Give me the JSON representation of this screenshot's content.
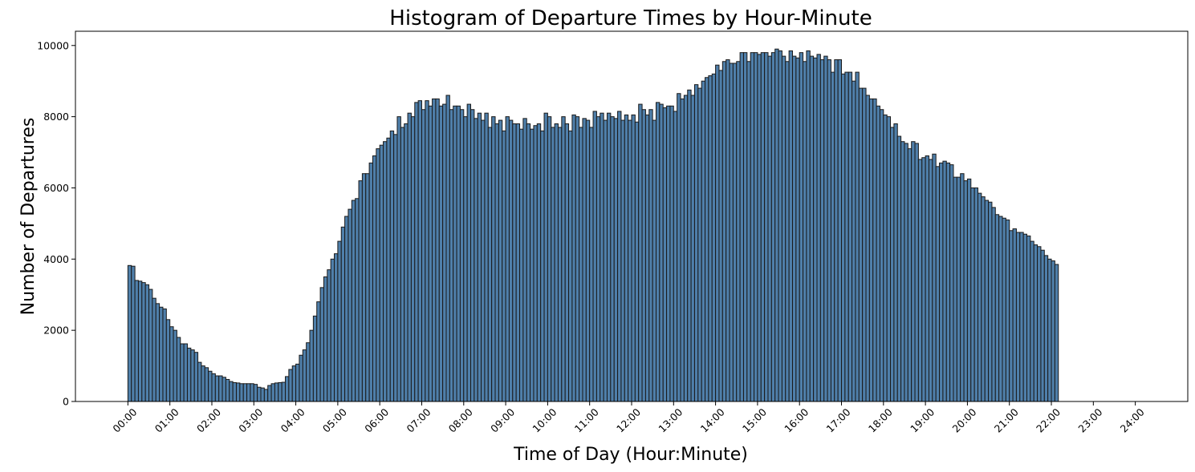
{
  "chart_data": {
    "type": "bar",
    "title": "Histogram of Departure Times by Hour-Minute",
    "xlabel": "Time of Day (Hour:Minute)",
    "ylabel": "Number of Departures",
    "bin_minutes": 5,
    "xlim_minutes": [
      -75,
      1515
    ],
    "ylim": [
      0,
      10400
    ],
    "grid": false,
    "legend": "none",
    "bar_color": "#4f7faa",
    "edge_color": "#1a1a1a",
    "x_ticks": [
      "00:00",
      "01:00",
      "02:00",
      "03:00",
      "04:00",
      "05:00",
      "06:00",
      "07:00",
      "08:00",
      "09:00",
      "10:00",
      "11:00",
      "12:00",
      "13:00",
      "14:00",
      "15:00",
      "16:00",
      "17:00",
      "18:00",
      "19:00",
      "20:00",
      "21:00",
      "22:00",
      "23:00",
      "24:00"
    ],
    "y_ticks": [
      0,
      2000,
      4000,
      6000,
      8000,
      10000
    ],
    "values": [
      3820,
      3800,
      3400,
      3380,
      3340,
      3280,
      3150,
      2900,
      2750,
      2650,
      2600,
      2300,
      2100,
      2000,
      1800,
      1620,
      1620,
      1500,
      1450,
      1380,
      1100,
      1000,
      950,
      850,
      780,
      720,
      720,
      680,
      620,
      560,
      530,
      520,
      500,
      500,
      500,
      500,
      480,
      400,
      380,
      340,
      450,
      500,
      520,
      530,
      540,
      700,
      900,
      1000,
      1050,
      1300,
      1450,
      1650,
      2000,
      2400,
      2800,
      3200,
      3500,
      3700,
      4000,
      4150,
      4500,
      4900,
      5200,
      5400,
      5650,
      5700,
      6200,
      6400,
      6400,
      6700,
      6900,
      7100,
      7200,
      7300,
      7400,
      7600,
      7500,
      8000,
      7700,
      7800,
      8100,
      8000,
      8400,
      8450,
      8200,
      8450,
      8300,
      8500,
      8500,
      8300,
      8350,
      8600,
      8200,
      8300,
      8300,
      8200,
      8000,
      8350,
      8200,
      7950,
      8100,
      7900,
      8100,
      7700,
      8000,
      7800,
      7900,
      7600,
      8000,
      7900,
      7800,
      7800,
      7650,
      7950,
      7800,
      7650,
      7750,
      7800,
      7600,
      8100,
      8000,
      7700,
      7800,
      7700,
      8000,
      7800,
      7600,
      8050,
      8000,
      7700,
      7950,
      7900,
      7700,
      8150,
      8000,
      8100,
      7900,
      8100,
      8000,
      7950,
      8150,
      7900,
      8050,
      7900,
      8050,
      7850,
      8350,
      8200,
      8050,
      8200,
      7900,
      8400,
      8350,
      8250,
      8300,
      8300,
      8150,
      8650,
      8500,
      8600,
      8750,
      8600,
      8900,
      8800,
      9000,
      9100,
      9150,
      9200,
      9450,
      9300,
      9550,
      9600,
      9500,
      9500,
      9550,
      9800,
      9800,
      9550,
      9800,
      9800,
      9750,
      9800,
      9800,
      9700,
      9800,
      9900,
      9850,
      9700,
      9550,
      9850,
      9700,
      9650,
      9800,
      9550,
      9850,
      9700,
      9650,
      9750,
      9600,
      9700,
      9600,
      9250,
      9600,
      9600,
      9200,
      9250,
      9250,
      9000,
      9250,
      8800,
      8800,
      8600,
      8500,
      8500,
      8300,
      8200,
      8050,
      8000,
      7700,
      7800,
      7450,
      7300,
      7250,
      7100,
      7300,
      7250,
      6800,
      6850,
      6900,
      6800,
      6950,
      6600,
      6700,
      6750,
      6700,
      6650,
      6300,
      6300,
      6400,
      6200,
      6250,
      6000,
      6000,
      5850,
      5750,
      5650,
      5600,
      5450,
      5250,
      5200,
      5150,
      5100,
      4800,
      4850,
      4750,
      4750,
      4700,
      4650,
      4500,
      4400,
      4350,
      4250,
      4100,
      4000,
      3950,
      3850
    ]
  }
}
